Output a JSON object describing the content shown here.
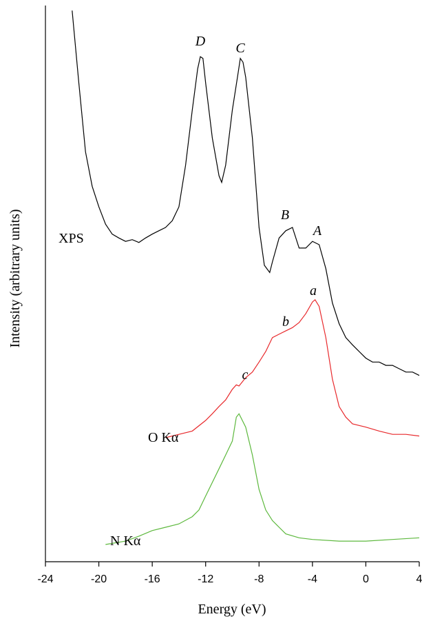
{
  "chart_data": {
    "type": "line",
    "xlabel": "Energy (eV)",
    "ylabel": "Intensity (arbitrary units)",
    "xlim": [
      -24,
      4
    ],
    "xticks": [
      -24,
      -20,
      -16,
      -12,
      -8,
      -4,
      0,
      4
    ],
    "ylim": [
      0,
      100
    ],
    "series": [
      {
        "name": "XPS",
        "color": "#000000",
        "x": [
          -22,
          -21.5,
          -21,
          -20.5,
          -20,
          -19.5,
          -19,
          -18.5,
          -18,
          -17.5,
          -17,
          -16.5,
          -16,
          -15.5,
          -15,
          -14.5,
          -14,
          -13.5,
          -13,
          -12.6,
          -12.4,
          -12.2,
          -12,
          -11.5,
          -11,
          -10.8,
          -10.5,
          -10,
          -9.6,
          -9.4,
          -9.2,
          -9,
          -8.5,
          -8,
          -7.6,
          -7.2,
          -7,
          -6.5,
          -6,
          -5.5,
          -5,
          -4.5,
          -4,
          -3.5,
          -3,
          -2.5,
          -2,
          -1.5,
          -1,
          -0.5,
          0,
          0.5,
          1,
          1.5,
          2,
          2.5,
          3,
          3.5,
          4
        ],
        "values": [
          99.1,
          86.1,
          73.7,
          67.5,
          63.8,
          60.7,
          58.9,
          58.2,
          57.6,
          57.9,
          57.4,
          58.2,
          58.9,
          59.5,
          60.1,
          61.3,
          63.8,
          71.3,
          81.2,
          88.6,
          90.8,
          90.5,
          86.1,
          76.2,
          69.4,
          68.2,
          71.3,
          81.2,
          87.4,
          90.5,
          89.8,
          87.1,
          76.2,
          60.1,
          53.3,
          52.0,
          53.9,
          58.2,
          59.5,
          60.1,
          56.4,
          56.4,
          57.6,
          57.0,
          52.7,
          46.5,
          42.8,
          40.3,
          39.0,
          37.8,
          36.6,
          35.9,
          35.9,
          35.3,
          35.3,
          34.7,
          34.1,
          34.1,
          33.5
        ]
      },
      {
        "name": "O Kα",
        "color": "#e8282b",
        "x": [
          -15,
          -14,
          -13,
          -12,
          -11.5,
          -11,
          -10.5,
          -10,
          -9.7,
          -9.5,
          -9,
          -8.5,
          -8,
          -7.5,
          -7,
          -6.5,
          -6,
          -5.5,
          -5,
          -4.5,
          -4,
          -3.8,
          -3.5,
          -3,
          -2.5,
          -2,
          -1.5,
          -1,
          0,
          1,
          2,
          3,
          4
        ],
        "values": [
          22.3,
          22.9,
          23.5,
          25.4,
          26.6,
          27.9,
          29.1,
          31.0,
          31.8,
          31.6,
          33.1,
          34.1,
          35.9,
          37.8,
          40.3,
          40.9,
          41.5,
          42.1,
          43.0,
          44.6,
          46.7,
          47.1,
          45.9,
          40.3,
          32.8,
          27.9,
          26.0,
          24.8,
          24.2,
          23.5,
          22.9,
          22.9,
          22.6
        ]
      },
      {
        "name": "N Kα",
        "color": "#5cb83c",
        "x": [
          -19.5,
          -18,
          -17,
          -16,
          -15,
          -14,
          -13,
          -12.5,
          -12,
          -11,
          -10.5,
          -10,
          -9.7,
          -9.5,
          -9,
          -8.5,
          -8,
          -7.5,
          -7,
          -6.5,
          -6,
          -5,
          -4,
          -2,
          0,
          2,
          4
        ],
        "values": [
          3.1,
          3.7,
          4.6,
          5.6,
          6.2,
          6.8,
          8.1,
          9.3,
          11.8,
          16.7,
          19.2,
          21.7,
          26.0,
          26.6,
          24.2,
          19.2,
          13.0,
          9.3,
          7.4,
          6.2,
          5.0,
          4.3,
          4.0,
          3.7,
          3.7,
          4.0,
          4.3
        ]
      }
    ],
    "annotations": [
      "D",
      "C",
      "B",
      "A",
      "a",
      "b",
      "c"
    ]
  }
}
